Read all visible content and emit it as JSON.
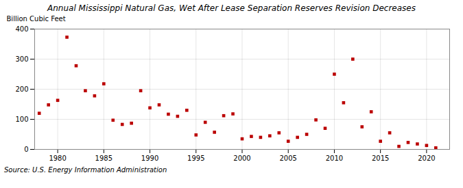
{
  "chart_data": {
    "type": "scatter",
    "title": "Annual Mississippi Natural Gas, Wet After Lease Separation Reserves Revision Decreases",
    "ylabel": "Billion Cubic Feet",
    "source": "Source: U.S. Energy Information Administration",
    "x": [
      1978,
      1979,
      1980,
      1981,
      1982,
      1983,
      1984,
      1985,
      1986,
      1987,
      1988,
      1989,
      1990,
      1991,
      1992,
      1993,
      1994,
      1995,
      1996,
      1997,
      1998,
      1999,
      2000,
      2001,
      2002,
      2003,
      2004,
      2005,
      2006,
      2007,
      2008,
      2009,
      2010,
      2011,
      2012,
      2013,
      2014,
      2015,
      2016,
      2017,
      2018,
      2019,
      2020,
      2021
    ],
    "values": [
      120,
      148,
      163,
      373,
      278,
      195,
      178,
      218,
      97,
      83,
      87,
      195,
      138,
      148,
      117,
      110,
      130,
      48,
      90,
      57,
      112,
      118,
      35,
      43,
      40,
      45,
      55,
      27,
      40,
      50,
      98,
      70,
      250,
      155,
      300,
      75,
      125,
      27,
      55,
      10,
      23,
      18,
      13,
      5
    ],
    "color": "#bb0000",
    "marker": "square",
    "xlim": [
      1977.5,
      2022.5
    ],
    "xticks": [
      1980,
      1985,
      1990,
      1995,
      2000,
      2005,
      2010,
      2015,
      2020
    ],
    "ylim": [
      0,
      400
    ],
    "yticks": [
      0,
      100,
      200,
      300,
      400
    ],
    "grid": true
  }
}
